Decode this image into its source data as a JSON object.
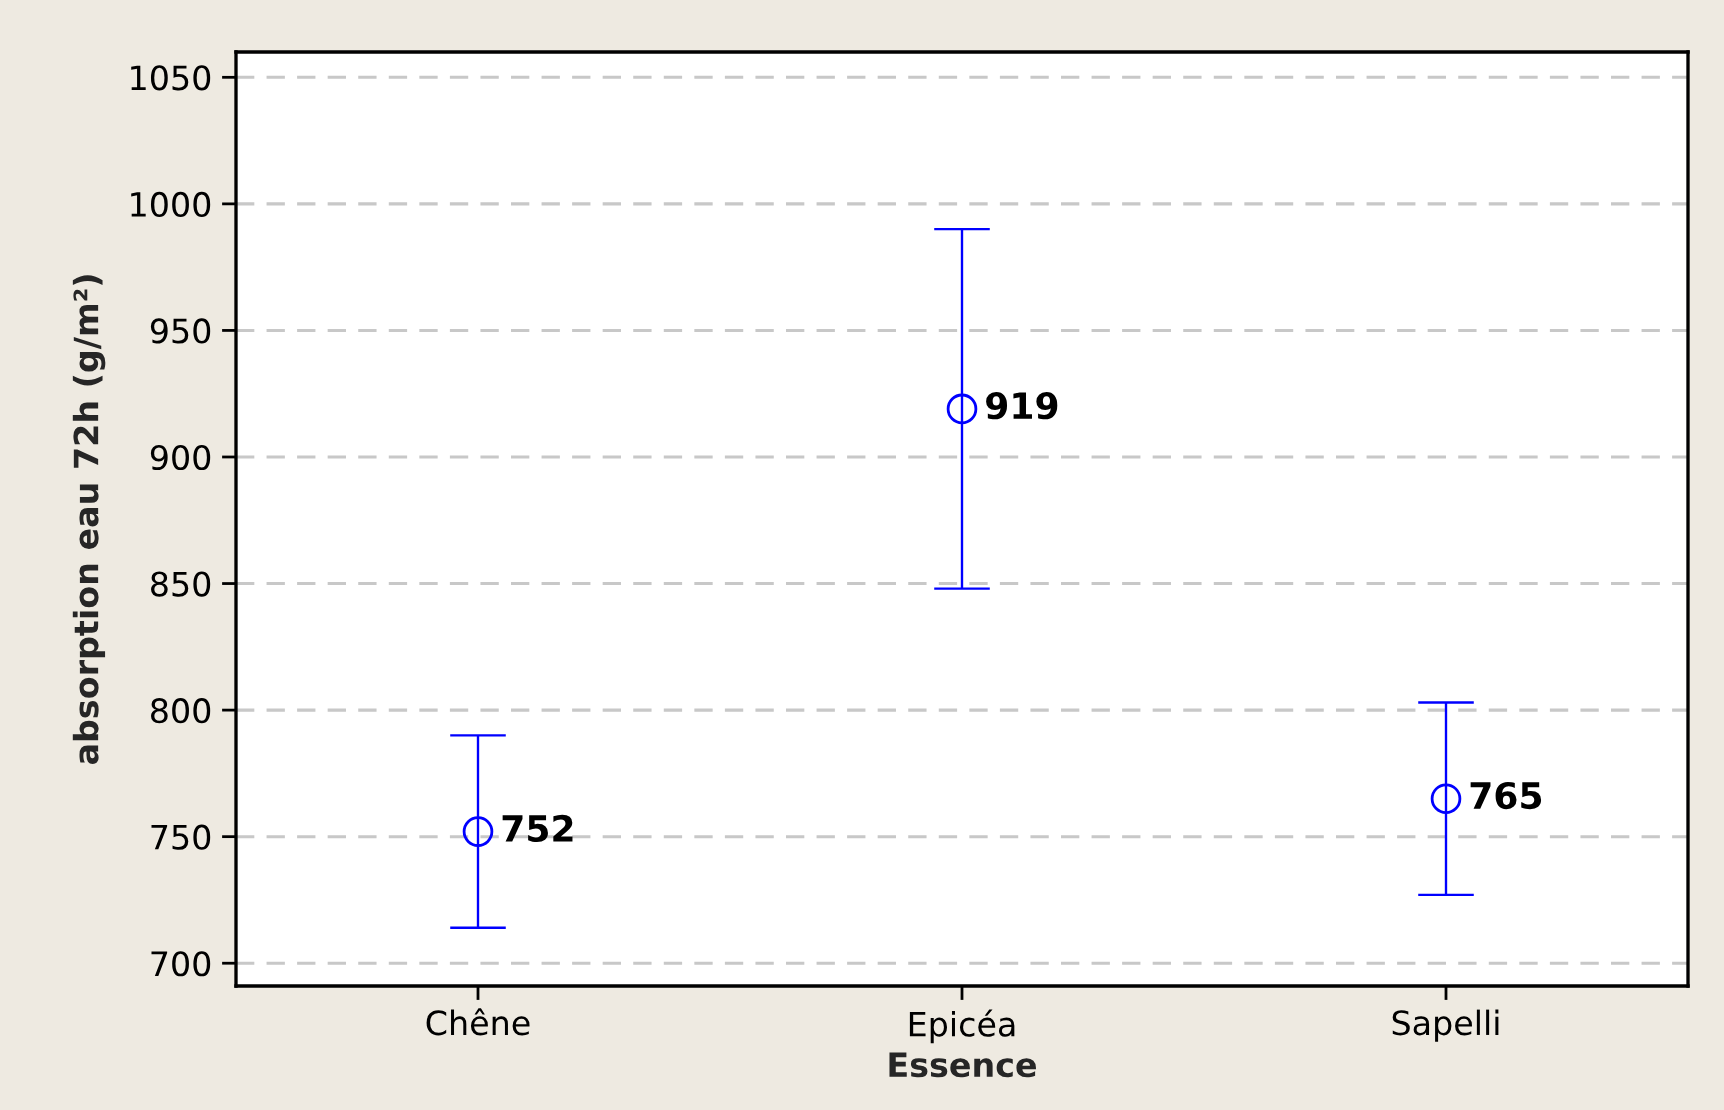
{
  "chart_data": {
    "type": "scatter",
    "xlabel": "Essence",
    "ylabel": "absorption eau 72h (g/m²)",
    "categories": [
      "Chêne",
      "Epicéa",
      "Sapelli"
    ],
    "values": [
      752,
      919,
      765
    ],
    "errors": [
      38,
      71,
      38
    ],
    "color": "#0000ff",
    "ylim": [
      691,
      1060
    ],
    "yticks": [
      700,
      750,
      800,
      850,
      900,
      950,
      1000,
      1050
    ],
    "grid": "y",
    "marker": "circle",
    "data_labels": true
  }
}
